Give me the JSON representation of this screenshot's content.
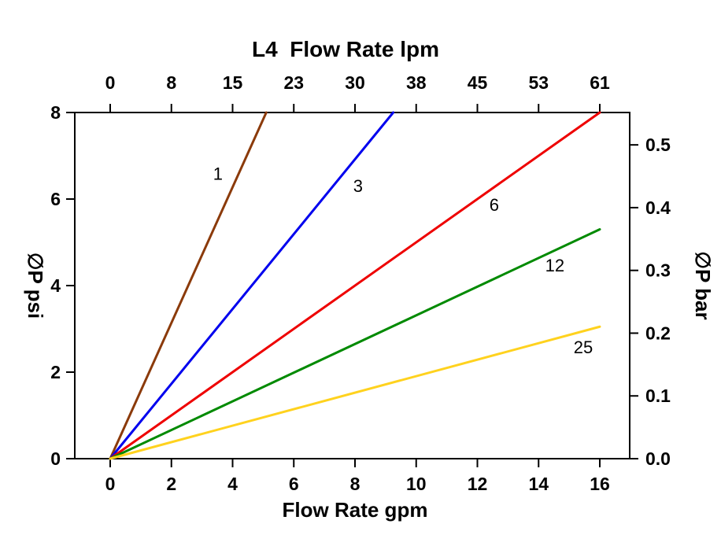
{
  "chart_data": {
    "type": "line",
    "title": "L4  Flow Rate lpm",
    "xlabel": "Flow Rate gpm",
    "ylabel_left": "∅P psi",
    "ylabel_right": "∅P bar",
    "grid": false,
    "legend": "inline-labels",
    "x_axis_bottom": {
      "unit": "gpm",
      "min": 0,
      "max": 16,
      "ticks": [
        0,
        2,
        4,
        6,
        8,
        10,
        12,
        14,
        16
      ],
      "tick_labels": [
        "0",
        "2",
        "4",
        "6",
        "8",
        "10",
        "12",
        "14",
        "16"
      ]
    },
    "x_axis_top": {
      "unit": "lpm",
      "tick_labels": [
        "0",
        "8",
        "15",
        "23",
        "30",
        "38",
        "45",
        "53",
        "61"
      ]
    },
    "y_axis_left": {
      "unit": "psi",
      "min": 0,
      "max": 8,
      "ticks": [
        0,
        2,
        4,
        6,
        8
      ],
      "tick_labels": [
        "0",
        "2",
        "4",
        "6",
        "8"
      ]
    },
    "y_axis_right": {
      "unit": "bar",
      "ticks": [
        0.0,
        0.1,
        0.2,
        0.3,
        0.4,
        0.5
      ],
      "tick_labels": [
        "0.0",
        "0.1",
        "0.2",
        "0.3",
        "0.4",
        "0.5"
      ],
      "psi_per_bar": 14.5038
    },
    "series": [
      {
        "name": "1",
        "color": "#8B3A0A",
        "points": [
          [
            0,
            0
          ],
          [
            5.1,
            8
          ]
        ],
        "label_at": [
          3.52,
          6.45
        ]
      },
      {
        "name": "3",
        "color": "#0000EE",
        "points": [
          [
            0,
            0
          ],
          [
            9.25,
            8
          ]
        ],
        "label_at": [
          8.1,
          6.16
        ]
      },
      {
        "name": "6",
        "color": "#EE0000",
        "points": [
          [
            0,
            0
          ],
          [
            16,
            8
          ]
        ],
        "label_at": [
          12.55,
          5.73
        ]
      },
      {
        "name": "12",
        "color": "#008A00",
        "points": [
          [
            0,
            0
          ],
          [
            16,
            5.3
          ]
        ],
        "label_at": [
          14.53,
          4.33
        ]
      },
      {
        "name": "25",
        "color": "#FFD21E",
        "points": [
          [
            0,
            0
          ],
          [
            16,
            3.05
          ]
        ],
        "label_at": [
          15.46,
          2.44
        ]
      }
    ]
  }
}
